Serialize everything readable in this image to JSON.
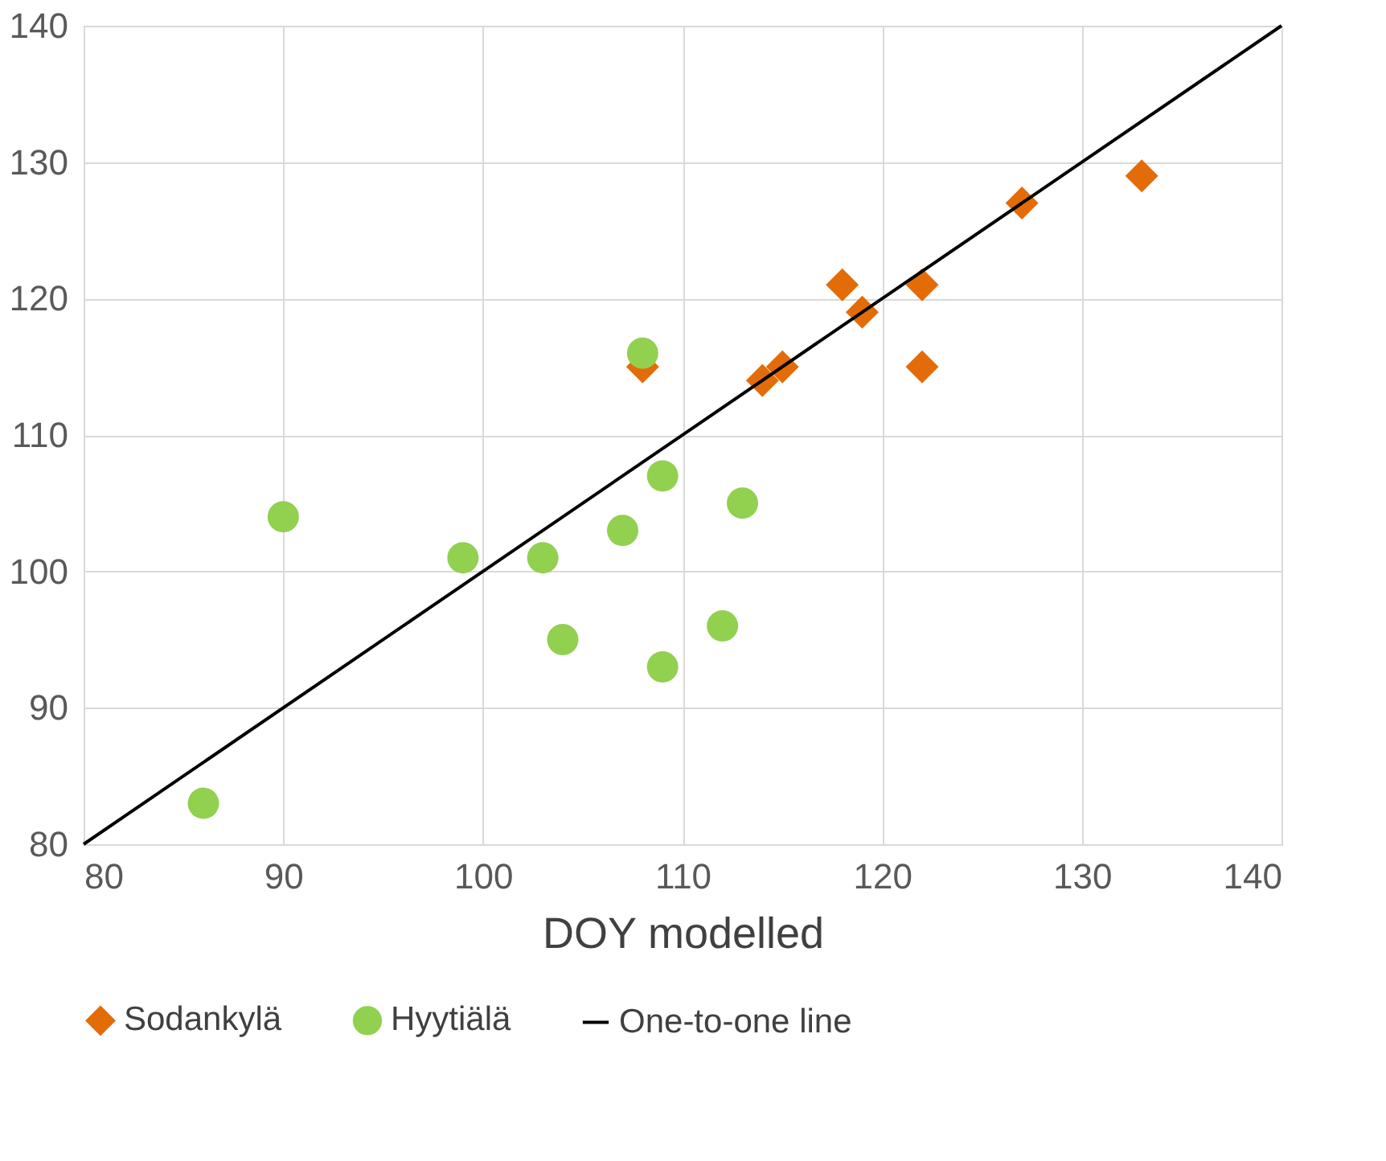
{
  "chart_data": {
    "type": "scatter",
    "xlabel": "DOY modelled",
    "xlim": [
      80,
      140
    ],
    "xticks": [
      80,
      90,
      100,
      110,
      120,
      130,
      140
    ],
    "ylim": [
      80,
      140
    ],
    "yticks": [
      80,
      90,
      100,
      110,
      120,
      130,
      140
    ],
    "grid": true,
    "legend": "bottom",
    "series": [
      {
        "name": "Sodankylä",
        "marker": "diamond",
        "color": "#e36c09",
        "x": [
          108,
          114,
          115,
          118,
          119,
          122,
          122,
          127,
          133
        ],
        "values": [
          115,
          114,
          115,
          121,
          119,
          121,
          115,
          127,
          129
        ]
      },
      {
        "name": "Hyytiälä",
        "marker": "circle",
        "color": "#92d050",
        "x": [
          86,
          90,
          99,
          103,
          104,
          107,
          108,
          109,
          109,
          112,
          113
        ],
        "values": [
          83,
          104,
          101,
          101,
          95,
          103,
          116,
          107,
          93,
          96,
          105
        ]
      },
      {
        "name": "One-to-one line",
        "type": "line",
        "color": "#000000",
        "x": [
          80,
          140
        ],
        "values": [
          80,
          140
        ]
      }
    ]
  }
}
